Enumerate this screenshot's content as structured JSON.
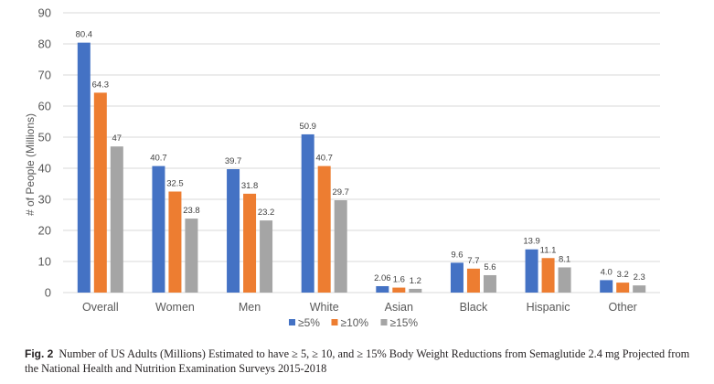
{
  "chart_data": {
    "type": "bar",
    "title": "",
    "xlabel": "",
    "ylabel": "# of People (Millions)",
    "ylim": [
      0,
      90
    ],
    "yticks": [
      0,
      10,
      20,
      30,
      40,
      50,
      60,
      70,
      80,
      90
    ],
    "grid": true,
    "legend_position": "bottom-center",
    "categories": [
      "Overall",
      "Women",
      "Men",
      "White",
      "Asian",
      "Black",
      "Hispanic",
      "Other"
    ],
    "series": [
      {
        "name": "≥5%",
        "color": "#4472c4",
        "values": [
          80.4,
          40.7,
          39.7,
          50.9,
          2.06,
          9.6,
          13.9,
          4.0
        ],
        "labels": [
          "80.4",
          "40.7",
          "39.7",
          "50.9",
          "2.06",
          "9.6",
          "13.9",
          "4.0"
        ]
      },
      {
        "name": "≥10%",
        "color": "#ed7d31",
        "values": [
          64.3,
          32.5,
          31.8,
          40.7,
          1.6,
          7.7,
          11.1,
          3.2
        ],
        "labels": [
          "64.3",
          "32.5",
          "31.8",
          "40.7",
          "1.6",
          "7.7",
          "11.1",
          "3.2"
        ]
      },
      {
        "name": "≥15%",
        "color": "#a5a5a5",
        "values": [
          47,
          23.8,
          23.2,
          29.7,
          1.2,
          5.6,
          8.1,
          2.3
        ],
        "labels": [
          "47",
          "23.8",
          "23.2",
          "29.7",
          "1.2",
          "5.6",
          "8.1",
          "2.3"
        ]
      }
    ]
  },
  "caption": {
    "figure_label": "Fig. 2",
    "text": "Number of US Adults (Millions) Estimated to have ≥ 5, ≥ 10, and ≥ 15% Body Weight Reductions from Semaglutide 2.4 mg Projected from the National Health and Nutrition Examination Surveys 2015-2018"
  }
}
